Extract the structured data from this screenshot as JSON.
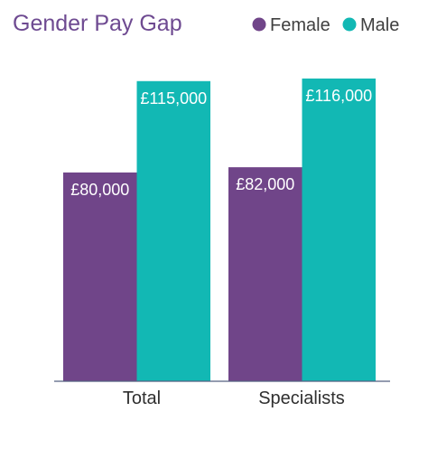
{
  "chart_data": {
    "type": "bar",
    "title": "Gender Pay Gap",
    "categories": [
      "Total",
      "Specialists"
    ],
    "series": [
      {
        "name": "Female",
        "color": "#704589",
        "values": [
          80000,
          82000
        ],
        "labels": [
          "£80,000",
          "£82,000"
        ]
      },
      {
        "name": "Male",
        "color": "#12b8b4",
        "values": [
          115000,
          116000
        ],
        "labels": [
          "£115,000",
          "£116,000"
        ]
      }
    ],
    "ylim": [
      0,
      117000
    ],
    "grid": false,
    "legend_position": "top-right"
  }
}
